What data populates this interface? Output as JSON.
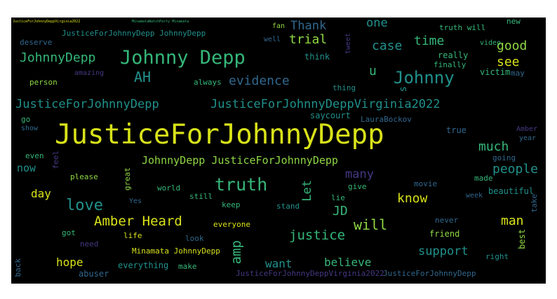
{
  "palette": {
    "background": "#000000",
    "page": "#ffffff",
    "yellow": "#d8e219",
    "lightgreen": "#8fd744",
    "green": "#35b779",
    "teal": "#21918c",
    "blue": "#31688e",
    "indigo": "#443983",
    "purple": "#440154"
  },
  "words": {
    "justice_main": "JusticeForJohnnyDepp",
    "johnny_depp": "Johnny Depp",
    "johnnydepp_1": "JohnnyDepp",
    "johnny": "Johnny",
    "jfjd_1": "JusticeForJohnnyDepp",
    "jfjd_va_1": "JusticeForJohnnyDeppVirginia2022",
    "evidence": "evidence",
    "ah": "AH",
    "thank": "Thank",
    "trial": "trial",
    "one": "one",
    "case": "case",
    "time": "time",
    "good": "good",
    "see": "see",
    "u": "u",
    "s": "s",
    "amber_heard": "Amber Heard",
    "love": "love",
    "truth": "truth",
    "much": "much",
    "people": "people",
    "many": "many",
    "johnnydepp_jfjd": "JohnnyDepp JusticeForJohnnyDepp",
    "day": "day",
    "now": "now",
    "let": "Let",
    "know": "know",
    "man": "man",
    "will": "will",
    "jd": "JD",
    "justice": "justice",
    "amp": "amp",
    "hope": "hope",
    "want": "want",
    "believe": "believe",
    "support": "support",
    "everything": "everything",
    "make": "make",
    "abuser": "abuser",
    "life": "life",
    "need": "need",
    "minamata_jd": "Minamata JohnnyDepp",
    "jfjd_va_2": "JusticeForJohnnyDeppVirginia2022",
    "jfjd_2": "JusticeForJohnnyDepp",
    "right": "right",
    "back": "back",
    "beautiful": "beautiful",
    "take": "take",
    "best": "best",
    "amber": "Amber",
    "year": "year",
    "going": "going",
    "made": "made",
    "movie": "movie",
    "give": "give",
    "lie": "lie",
    "stand": "stand",
    "keep": "keep",
    "everyone": "everyone",
    "never": "never",
    "friend": "friend",
    "look": "look",
    "still": "still",
    "world": "world",
    "great": "great",
    "please": "please",
    "feel": "feel",
    "even": "even",
    "show": "show",
    "go": "go",
    "yes": "Yes",
    "got": "got",
    "true": "true",
    "laurabockov": "LauraBockov",
    "saycourt": "saycourt",
    "thing": "thing",
    "always": "always",
    "person": "person",
    "amazing": "amazing",
    "finally": "finally",
    "victim": "victim",
    "really": "really",
    "video": "video",
    "think": "think",
    "well": "well",
    "fan": "fan",
    "new": "new",
    "truth_will": "truth will",
    "deserve": "deserve",
    "jfjd_jd": "JusticeForJohnnyDepp JohnnyDepp",
    "may": "may",
    "week": "week",
    "tweet": "tweet",
    "top_left": "JusticeForJohnnyDeppVirginia2022",
    "top_mid": "MinamataWatchParty Minamata"
  }
}
